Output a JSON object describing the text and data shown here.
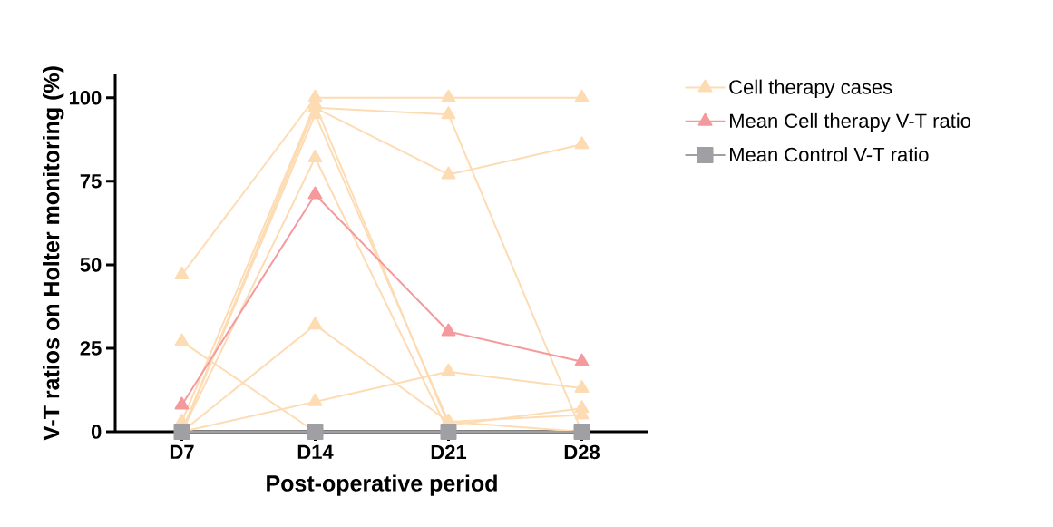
{
  "chart_data": {
    "type": "line",
    "xlabel": "Post-operative period",
    "ylabel": "V-T ratios on Holter monitoring (%)",
    "categories": [
      "D7",
      "D14",
      "D21",
      "D28"
    ],
    "series": [
      {
        "name": "Cell therapy cases",
        "color": "#fddcb4",
        "marker": "triangle",
        "values": [
          47,
          100,
          100,
          100
        ]
      },
      {
        "color": "#fddcb4",
        "marker": "triangle",
        "values": [
          27,
          0,
          0,
          0
        ]
      },
      {
        "color": "#fddcb4",
        "marker": "triangle",
        "values": [
          0,
          32,
          3,
          0
        ]
      },
      {
        "color": "#fddcb4",
        "marker": "triangle",
        "values": [
          0,
          9,
          18,
          13
        ]
      },
      {
        "color": "#fddcb4",
        "marker": "triangle",
        "values": [
          0,
          97,
          95,
          0
        ]
      },
      {
        "color": "#fddcb4",
        "marker": "triangle",
        "values": [
          0,
          97,
          77,
          86
        ]
      },
      {
        "color": "#fddcb4",
        "marker": "triangle",
        "values": [
          0,
          82,
          0,
          0
        ]
      },
      {
        "color": "#fddcb4",
        "marker": "triangle",
        "values": [
          0,
          95,
          3,
          5
        ]
      },
      {
        "color": "#fddcb4",
        "marker": "triangle",
        "values": [
          3,
          98,
          2,
          7
        ]
      },
      {
        "name": "Mean Cell therapy V-T ratio",
        "color": "#f59a9c",
        "marker": "triangle",
        "values": [
          8,
          71,
          30,
          21
        ]
      },
      {
        "name": "Mean Control V-T ratio",
        "color": "#a0a0a4",
        "marker": "square",
        "values": [
          0,
          0,
          0,
          0
        ]
      }
    ],
    "ylim": [
      0,
      107
    ],
    "yticks": [
      0,
      25,
      50,
      75,
      100
    ],
    "grid": false,
    "legend": "top right",
    "line_style": "solid"
  }
}
